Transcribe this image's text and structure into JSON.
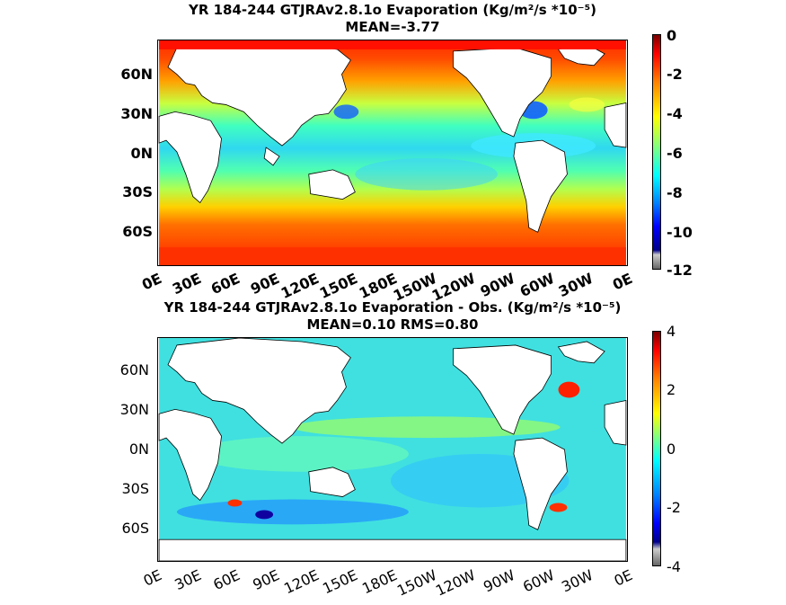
{
  "panel1": {
    "title_line1": "YR 184-244 GTJRAv2.8.1o  Evaporation (Kg/m²/s *10⁻⁵)",
    "title_line2": "MEAN=-3.77",
    "lat_labels": [
      "60N",
      "30N",
      "0N",
      "30S",
      "60S"
    ],
    "lon_labels": [
      "0E",
      "30E",
      "60E",
      "90E",
      "120E",
      "150E",
      "180E",
      "150W",
      "120W",
      "90W",
      "60W",
      "30W",
      "0E"
    ],
    "colorbar_ticks": [
      "0",
      "-2",
      "-4",
      "-6",
      "-8",
      "-10",
      "-12"
    ],
    "colorbar_range": [
      -12,
      0
    ]
  },
  "panel2": {
    "title_line1": "YR 184-244 GTJRAv2.8.1o Evaporation - Obs. (Kg/m²/s *10⁻⁵)",
    "title_line2": "MEAN=0.10   RMS=0.80",
    "lat_labels": [
      "60N",
      "30N",
      "0N",
      "30S",
      "60S"
    ],
    "lon_labels": [
      "0E",
      "30E",
      "60E",
      "90E",
      "120E",
      "150E",
      "180E",
      "150W",
      "120W",
      "90W",
      "60W",
      "30W",
      "0E"
    ],
    "colorbar_ticks": [
      "4",
      "2",
      "0",
      "-2",
      "-4"
    ],
    "colorbar_range": [
      -4,
      4
    ]
  },
  "colors": {
    "land": "#ffffff",
    "jet_high": "#ff0000",
    "jet_mid": "#33e8c8",
    "jet_low": "#0000a0"
  }
}
